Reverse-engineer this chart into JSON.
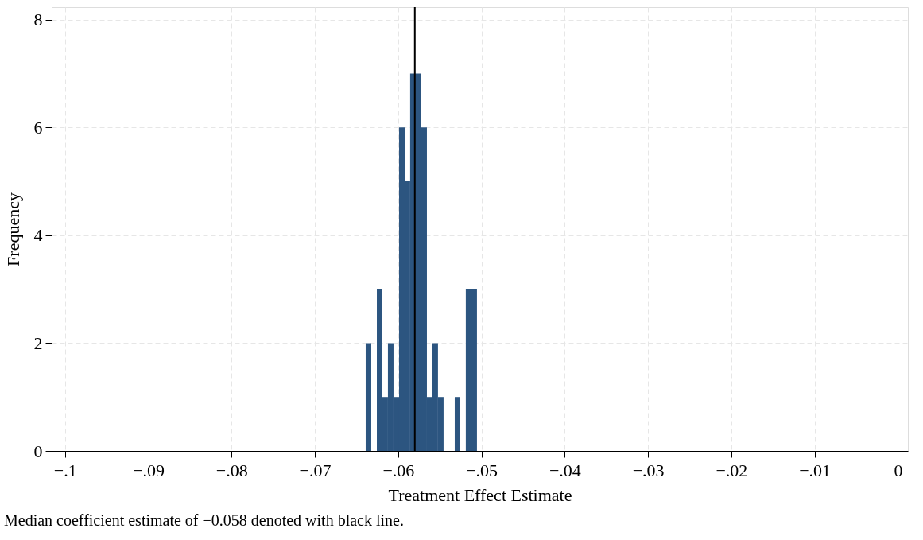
{
  "chart_data": {
    "type": "histogram",
    "xlabel": "Treatment Effect Estimate",
    "ylabel": "Frequency",
    "bins": [
      -0.0639,
      -0.06323,
      -0.06256,
      -0.0619,
      -0.06123,
      -0.06056,
      -0.05989,
      -0.05922,
      -0.05856,
      -0.05789,
      -0.05722,
      -0.05655,
      -0.05588,
      -0.05522,
      -0.05455,
      -0.05388,
      -0.05321,
      -0.05254,
      -0.05188,
      -0.05121,
      -0.05054
    ],
    "values": [
      2,
      0,
      3,
      1,
      2,
      1,
      6,
      5,
      7,
      7,
      6,
      1,
      2,
      1,
      0,
      0,
      1,
      0,
      3,
      3
    ],
    "color": "#2c5580",
    "xlim": [
      -0.1016,
      0.0012
    ],
    "ylim": [
      0,
      8.23
    ],
    "xticks": [
      {
        "value": -0.1,
        "label": "−.1"
      },
      {
        "value": -0.09,
        "label": "−.09"
      },
      {
        "value": -0.08,
        "label": "−.08"
      },
      {
        "value": -0.07,
        "label": "−.07"
      },
      {
        "value": -0.06,
        "label": "−.06"
      },
      {
        "value": -0.05,
        "label": "−.05"
      },
      {
        "value": -0.04,
        "label": "−.04"
      },
      {
        "value": -0.03,
        "label": "−.03"
      },
      {
        "value": -0.02,
        "label": "−.02"
      },
      {
        "value": -0.01,
        "label": "−.01"
      },
      0
    ],
    "yticks": [
      0,
      2,
      4,
      6,
      8
    ],
    "grid": true,
    "ref_lines": [
      {
        "axis": "x",
        "value": -0.058,
        "color": "#000000"
      }
    ],
    "annotations": [
      "Median coefficient estimate of −0.058 denoted with black line."
    ]
  }
}
